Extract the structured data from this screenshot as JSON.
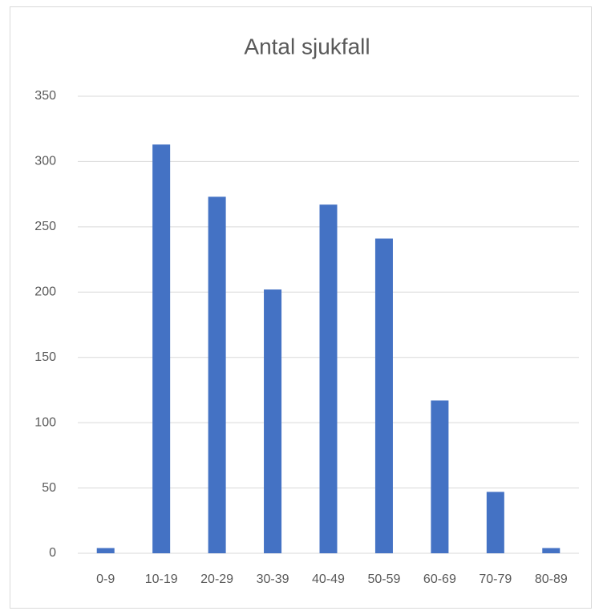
{
  "chart_data": {
    "type": "bar",
    "title": "Antal sjukfall",
    "categories": [
      "0-9",
      "10-19",
      "20-29",
      "30-39",
      "40-49",
      "50-59",
      "60-69",
      "70-79",
      "80-89"
    ],
    "values": [
      4,
      313,
      273,
      202,
      267,
      241,
      117,
      47,
      4
    ],
    "color": "#4472c4",
    "ylim": [
      0,
      350
    ],
    "yticks": [
      0,
      50,
      100,
      150,
      200,
      250,
      300,
      350
    ],
    "grid": true
  }
}
